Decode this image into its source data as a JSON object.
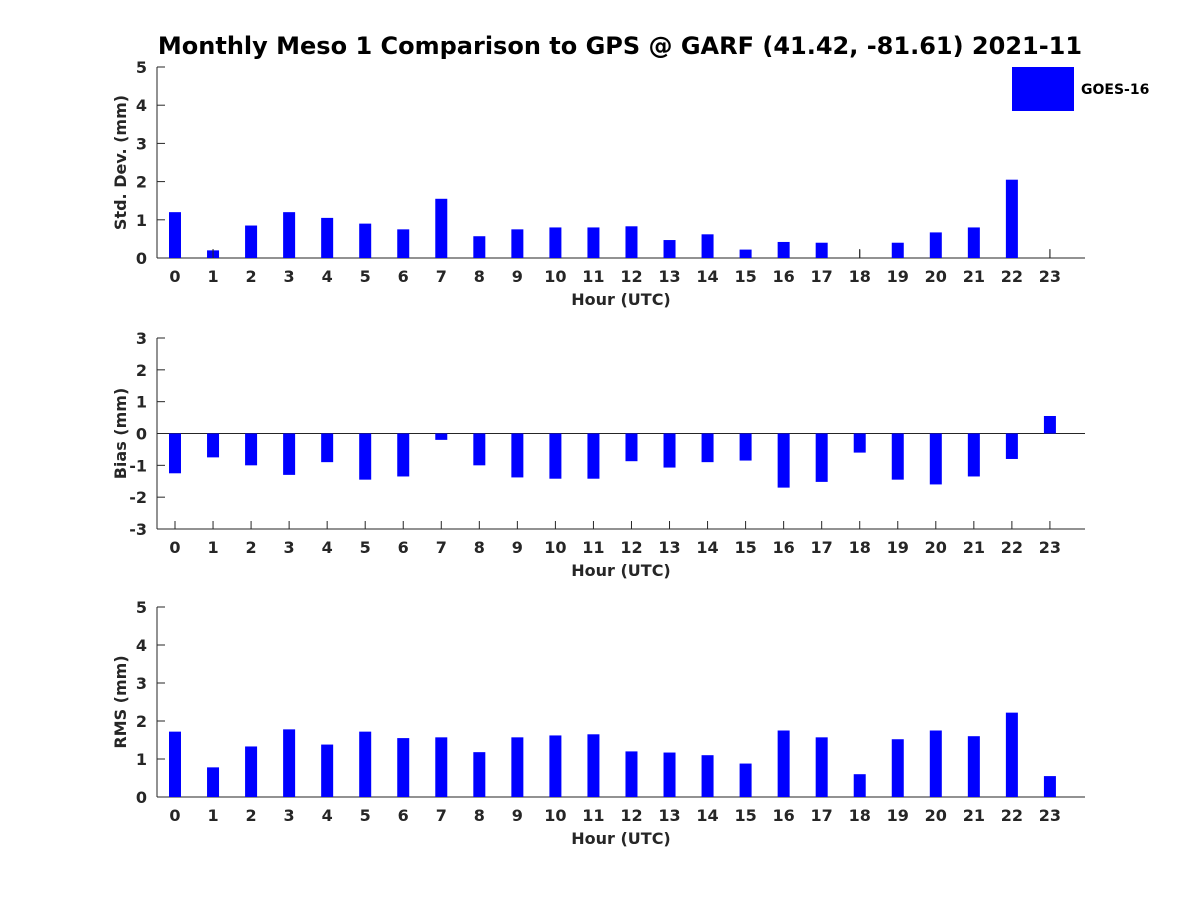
{
  "colors": {
    "series": "#0000ff",
    "axis": "#262626"
  },
  "title": "Monthly Meso 1 Comparison to GPS @ GARF (41.42, -81.61) 2021-11",
  "legend": {
    "label": "GOES-16",
    "placement": "top-right"
  },
  "chart_data": [
    {
      "type": "bar",
      "xlabel": "Hour (UTC)",
      "ylabel": "Std. Dev. (mm)",
      "ylim": [
        0,
        5
      ],
      "yticks": [
        "0",
        "1",
        "2",
        "3",
        "4",
        "5"
      ],
      "categories": [
        "0",
        "1",
        "2",
        "3",
        "4",
        "5",
        "6",
        "7",
        "8",
        "9",
        "10",
        "11",
        "12",
        "13",
        "14",
        "15",
        "16",
        "17",
        "18",
        "19",
        "20",
        "21",
        "22",
        "23"
      ],
      "series": [
        {
          "name": "GOES-16",
          "values": [
            1.2,
            0.2,
            0.85,
            1.2,
            1.05,
            0.9,
            0.75,
            1.55,
            0.57,
            0.75,
            0.8,
            0.8,
            0.83,
            0.47,
            0.62,
            0.22,
            0.42,
            0.4,
            0,
            0.4,
            0.67,
            0.8,
            2.05,
            0
          ]
        }
      ],
      "stems": [
        1,
        18,
        23
      ]
    },
    {
      "type": "bar",
      "xlabel": "Hour (UTC)",
      "ylabel": "Bias (mm)",
      "ylim": [
        -3,
        3
      ],
      "yticks": [
        "-3",
        "-2",
        "-1",
        "0",
        "1",
        "2",
        "3"
      ],
      "categories": [
        "0",
        "1",
        "2",
        "3",
        "4",
        "5",
        "6",
        "7",
        "8",
        "9",
        "10",
        "11",
        "12",
        "13",
        "14",
        "15",
        "16",
        "17",
        "18",
        "19",
        "20",
        "21",
        "22",
        "23"
      ],
      "series": [
        {
          "name": "GOES-16",
          "values": [
            -1.25,
            -0.75,
            -1.0,
            -1.3,
            -0.9,
            -1.45,
            -1.35,
            -0.2,
            -1.0,
            -1.38,
            -1.42,
            -1.42,
            -0.87,
            -1.07,
            -0.9,
            -0.85,
            -1.7,
            -1.52,
            -0.6,
            -1.45,
            -1.6,
            -1.35,
            -0.8,
            0.55
          ]
        }
      ],
      "stems": []
    },
    {
      "type": "bar",
      "xlabel": "Hour (UTC)",
      "ylabel": "RMS (mm)",
      "ylim": [
        0,
        5
      ],
      "yticks": [
        "0",
        "1",
        "2",
        "3",
        "4",
        "5"
      ],
      "categories": [
        "0",
        "1",
        "2",
        "3",
        "4",
        "5",
        "6",
        "7",
        "8",
        "9",
        "10",
        "11",
        "12",
        "13",
        "14",
        "15",
        "16",
        "17",
        "18",
        "19",
        "20",
        "21",
        "22",
        "23"
      ],
      "series": [
        {
          "name": "GOES-16",
          "values": [
            1.72,
            0.78,
            1.33,
            1.78,
            1.38,
            1.72,
            1.55,
            1.57,
            1.18,
            1.57,
            1.62,
            1.65,
            1.2,
            1.17,
            1.1,
            0.88,
            1.75,
            1.57,
            0.6,
            1.52,
            1.75,
            1.6,
            2.22,
            0.55
          ]
        }
      ],
      "stems": []
    }
  ]
}
